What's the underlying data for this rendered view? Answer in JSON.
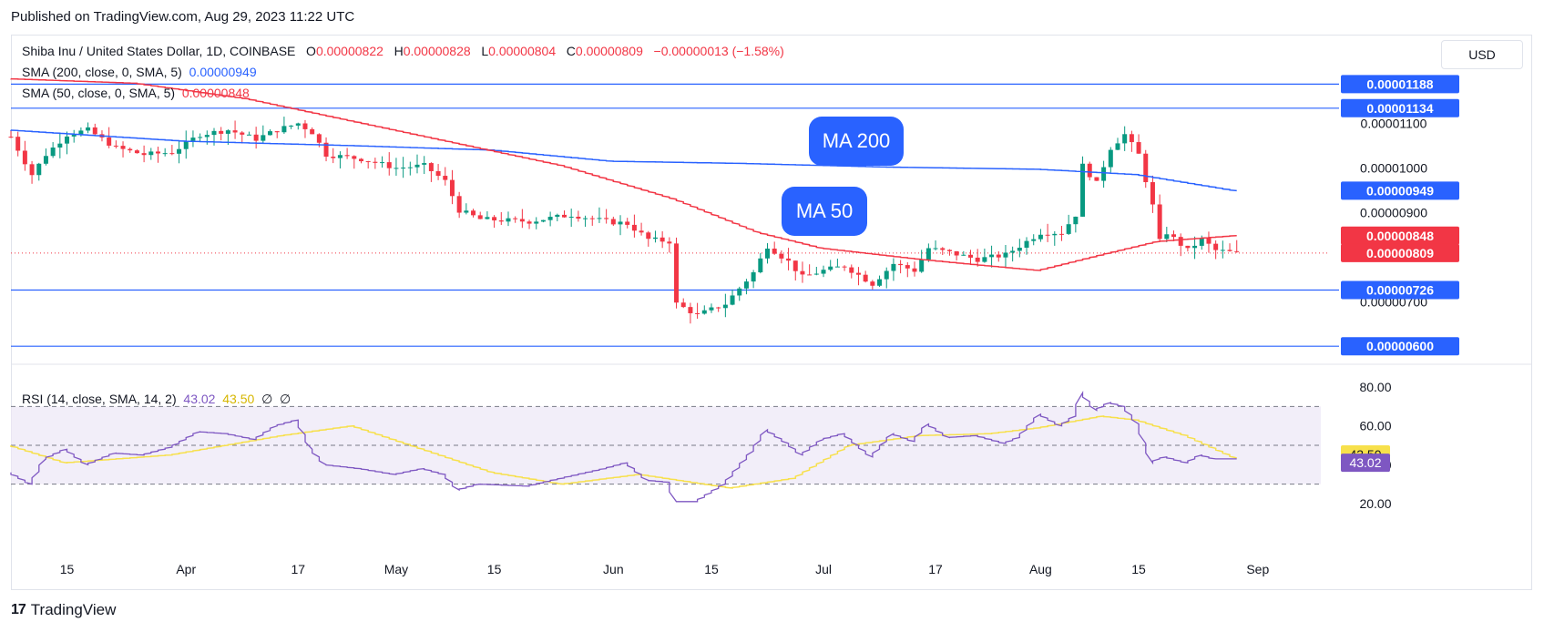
{
  "published": "Published on TradingView.com, Aug 29, 2023 11:22 UTC",
  "legend": {
    "symbol": "Shiba Inu / United States Dollar, 1D, COINBASE",
    "o_label": "O",
    "o": "0.00000822",
    "h_label": "H",
    "h": "0.00000828",
    "l_label": "L",
    "l": "0.00000804",
    "c_label": "C",
    "c": "0.00000809",
    "change": "−0.00000013 (−1.58%)",
    "sma200_label": "SMA (200, close, 0, SMA, 5)",
    "sma200": "0.00000949",
    "sma50_label": "SMA (50, close, 0, SMA, 5)",
    "sma50": "0.00000848",
    "rsi_label": "RSI (14, close, SMA, 14, 2)",
    "rsi": "43.02",
    "rsi_sma": "43.50",
    "rsi_extra1": "∅",
    "rsi_extra2": "∅"
  },
  "currency": "USD",
  "brand": "TradingView",
  "callouts": {
    "ma200": "MA 200",
    "ma50": "MA 50"
  },
  "colors": {
    "up": "#089981",
    "down": "#f23645",
    "sma200": "#2962ff",
    "sma50": "#f23645",
    "rsi": "#7e57c2",
    "rsi_sma": "#f7e04b",
    "hline": "#2962ff",
    "rsi_band": "#ede7f6"
  },
  "chart_data": [
    {
      "type": "candlestick",
      "title": "Shiba Inu / United States Dollar, 1D, COINBASE",
      "x_range": [
        "2023-03-07",
        "2023-09-10"
      ],
      "xtick_labels": [
        "15",
        "Apr",
        "17",
        "May",
        "15",
        "Jun",
        "15",
        "Jul",
        "17",
        "Aug",
        "15",
        "Sep"
      ],
      "xtick_dates": [
        "2023-03-15",
        "2023-04-01",
        "2023-04-17",
        "2023-05-01",
        "2023-05-15",
        "2023-06-01",
        "2023-06-15",
        "2023-07-01",
        "2023-07-17",
        "2023-08-01",
        "2023-08-15",
        "2023-09-01"
      ],
      "y_unit": "USD",
      "ylim": [
        5.8e-06,
        1.25e-05
      ],
      "ytick_labels": [
        "0.00001100",
        "0.00001000",
        "0.00000900",
        "0.00000700"
      ],
      "ytick_values": [
        1.1e-05,
        1e-05,
        9e-06,
        7e-06
      ],
      "horizontal_levels": [
        {
          "value": 1.188e-05,
          "label": "0.00001188"
        },
        {
          "value": 1.134e-05,
          "label": "0.00001134"
        },
        {
          "value": 7.26e-06,
          "label": "0.00000726"
        },
        {
          "value": 6e-06,
          "label": "0.00000600"
        }
      ],
      "last_price": {
        "value": 8.09e-06,
        "label": "0.00000809"
      },
      "sma200_last": {
        "value": 9.49e-06,
        "label": "0.00000949"
      },
      "sma50_last": {
        "value": 8.48e-06,
        "label": "0.00000848"
      },
      "close_anchors": [
        [
          "2023-03-07",
          10.7
        ],
        [
          "2023-03-10",
          9.85
        ],
        [
          "2023-03-12",
          10.3
        ],
        [
          "2023-03-15",
          10.75
        ],
        [
          "2023-03-18",
          10.85
        ],
        [
          "2023-03-22",
          10.45
        ],
        [
          "2023-03-26",
          10.3
        ],
        [
          "2023-03-30",
          10.35
        ],
        [
          "2023-04-03",
          10.75
        ],
        [
          "2023-04-07",
          10.85
        ],
        [
          "2023-04-11",
          10.65
        ],
        [
          "2023-04-14",
          10.85
        ],
        [
          "2023-04-17",
          11.0
        ],
        [
          "2023-04-19",
          10.8
        ],
        [
          "2023-04-21",
          10.3
        ],
        [
          "2023-04-26",
          10.2
        ],
        [
          "2023-05-01",
          10.0
        ],
        [
          "2023-05-05",
          10.05
        ],
        [
          "2023-05-08",
          9.7
        ],
        [
          "2023-05-10",
          9.05
        ],
        [
          "2023-05-13",
          8.85
        ],
        [
          "2023-05-20",
          8.8
        ],
        [
          "2023-05-26",
          8.95
        ],
        [
          "2023-05-31",
          8.8
        ],
        [
          "2023-06-03",
          8.75
        ],
        [
          "2023-06-06",
          8.4
        ],
        [
          "2023-06-09",
          8.35
        ],
        [
          "2023-06-10",
          6.95
        ],
        [
          "2023-06-13",
          6.7
        ],
        [
          "2023-06-17",
          6.95
        ],
        [
          "2023-06-21",
          7.65
        ],
        [
          "2023-06-23",
          8.25
        ],
        [
          "2023-06-26",
          7.9
        ],
        [
          "2023-06-28",
          7.55
        ],
        [
          "2023-07-01",
          7.7
        ],
        [
          "2023-07-04",
          7.8
        ],
        [
          "2023-07-08",
          7.4
        ],
        [
          "2023-07-11",
          7.85
        ],
        [
          "2023-07-14",
          7.7
        ],
        [
          "2023-07-16",
          8.2
        ],
        [
          "2023-07-19",
          8.1
        ],
        [
          "2023-07-23",
          7.95
        ],
        [
          "2023-07-27",
          8.05
        ],
        [
          "2023-07-29",
          8.25
        ],
        [
          "2023-08-01",
          8.55
        ],
        [
          "2023-08-04",
          8.55
        ],
        [
          "2023-08-06",
          8.95
        ],
        [
          "2023-08-07",
          10.05
        ],
        [
          "2023-08-09",
          9.65
        ],
        [
          "2023-08-11",
          10.45
        ],
        [
          "2023-08-13",
          10.75
        ],
        [
          "2023-08-15",
          10.3
        ],
        [
          "2023-08-17",
          9.15
        ],
        [
          "2023-08-18",
          8.35
        ],
        [
          "2023-08-19",
          8.55
        ],
        [
          "2023-08-22",
          8.15
        ],
        [
          "2023-08-24",
          8.4
        ],
        [
          "2023-08-26",
          8.15
        ],
        [
          "2023-08-29",
          8.09
        ]
      ],
      "close_anchor_units": "1e-6 USD",
      "sma50_anchors": [
        [
          "2023-03-07",
          12.0
        ],
        [
          "2023-03-25",
          11.9
        ],
        [
          "2023-04-10",
          11.55
        ],
        [
          "2023-04-25",
          11.05
        ],
        [
          "2023-05-10",
          10.55
        ],
        [
          "2023-05-25",
          10.05
        ],
        [
          "2023-06-10",
          9.3
        ],
        [
          "2023-06-22",
          8.55
        ],
        [
          "2023-07-01",
          8.2
        ],
        [
          "2023-07-15",
          7.95
        ],
        [
          "2023-07-25",
          7.8
        ],
        [
          "2023-08-01",
          7.7
        ],
        [
          "2023-08-10",
          8.05
        ],
        [
          "2023-08-18",
          8.35
        ],
        [
          "2023-08-29",
          8.48
        ]
      ],
      "sma200_anchors": [
        [
          "2023-03-07",
          10.85
        ],
        [
          "2023-04-01",
          10.6
        ],
        [
          "2023-04-25",
          10.5
        ],
        [
          "2023-05-15",
          10.4
        ],
        [
          "2023-06-01",
          10.15
        ],
        [
          "2023-06-20",
          10.1
        ],
        [
          "2023-07-10",
          10.02
        ],
        [
          "2023-08-01",
          9.97
        ],
        [
          "2023-08-15",
          9.85
        ],
        [
          "2023-08-29",
          9.49
        ]
      ]
    },
    {
      "type": "line",
      "title": "RSI (14, close, SMA, 14, 2)",
      "ylim": [
        12,
        88
      ],
      "ytick_labels": [
        "80.00",
        "60.00",
        "40.00",
        "20.00"
      ],
      "ytick_values": [
        80,
        60,
        40,
        20
      ],
      "bands": [
        70,
        50,
        30
      ],
      "series": [
        {
          "name": "RSI",
          "last": "43.02",
          "anchors": [
            [
              "2023-03-07",
              36
            ],
            [
              "2023-03-10",
              30
            ],
            [
              "2023-03-12",
              43
            ],
            [
              "2023-03-15",
              48
            ],
            [
              "2023-03-18",
              40
            ],
            [
              "2023-03-22",
              46
            ],
            [
              "2023-03-26",
              45
            ],
            [
              "2023-03-30",
              49
            ],
            [
              "2023-04-03",
              57
            ],
            [
              "2023-04-07",
              56
            ],
            [
              "2023-04-11",
              53
            ],
            [
              "2023-04-14",
              60
            ],
            [
              "2023-04-17",
              63
            ],
            [
              "2023-04-19",
              48
            ],
            [
              "2023-04-21",
              40
            ],
            [
              "2023-04-26",
              38
            ],
            [
              "2023-05-01",
              35
            ],
            [
              "2023-05-05",
              38
            ],
            [
              "2023-05-08",
              35
            ],
            [
              "2023-05-10",
              27
            ],
            [
              "2023-05-13",
              30
            ],
            [
              "2023-05-20",
              29
            ],
            [
              "2023-05-26",
              34
            ],
            [
              "2023-05-31",
              38
            ],
            [
              "2023-06-03",
              41
            ],
            [
              "2023-06-06",
              32
            ],
            [
              "2023-06-09",
              31
            ],
            [
              "2023-06-10",
              21
            ],
            [
              "2023-06-13",
              21
            ],
            [
              "2023-06-17",
              30
            ],
            [
              "2023-06-21",
              47
            ],
            [
              "2023-06-23",
              58
            ],
            [
              "2023-06-26",
              51
            ],
            [
              "2023-06-28",
              45
            ],
            [
              "2023-07-01",
              53
            ],
            [
              "2023-07-04",
              56
            ],
            [
              "2023-07-08",
              44
            ],
            [
              "2023-07-11",
              56
            ],
            [
              "2023-07-14",
              52
            ],
            [
              "2023-07-16",
              61
            ],
            [
              "2023-07-19",
              54
            ],
            [
              "2023-07-23",
              55
            ],
            [
              "2023-07-27",
              51
            ],
            [
              "2023-07-29",
              54
            ],
            [
              "2023-08-01",
              66
            ],
            [
              "2023-08-04",
              60
            ],
            [
              "2023-08-06",
              65
            ],
            [
              "2023-08-07",
              77
            ],
            [
              "2023-08-09",
              68
            ],
            [
              "2023-08-11",
              72
            ],
            [
              "2023-08-13",
              70
            ],
            [
              "2023-08-15",
              61
            ],
            [
              "2023-08-17",
              41
            ],
            [
              "2023-08-18",
              43
            ],
            [
              "2023-08-19",
              44
            ],
            [
              "2023-08-22",
              41
            ],
            [
              "2023-08-24",
              45
            ],
            [
              "2023-08-26",
              43
            ],
            [
              "2023-08-29",
              43.02
            ]
          ]
        },
        {
          "name": "RSI SMA",
          "last": "43.50",
          "anchors": [
            [
              "2023-03-07",
              50
            ],
            [
              "2023-03-15",
              41
            ],
            [
              "2023-03-30",
              45
            ],
            [
              "2023-04-15",
              55
            ],
            [
              "2023-04-25",
              60
            ],
            [
              "2023-05-05",
              48
            ],
            [
              "2023-05-15",
              36
            ],
            [
              "2023-05-25",
              30
            ],
            [
              "2023-06-05",
              35
            ],
            [
              "2023-06-18",
              28
            ],
            [
              "2023-06-27",
              33
            ],
            [
              "2023-07-05",
              50
            ],
            [
              "2023-07-15",
              55
            ],
            [
              "2023-07-25",
              56
            ],
            [
              "2023-08-01",
              59
            ],
            [
              "2023-08-10",
              65
            ],
            [
              "2023-08-15",
              63
            ],
            [
              "2023-08-22",
              55
            ],
            [
              "2023-08-29",
              43.5
            ]
          ]
        }
      ]
    }
  ]
}
